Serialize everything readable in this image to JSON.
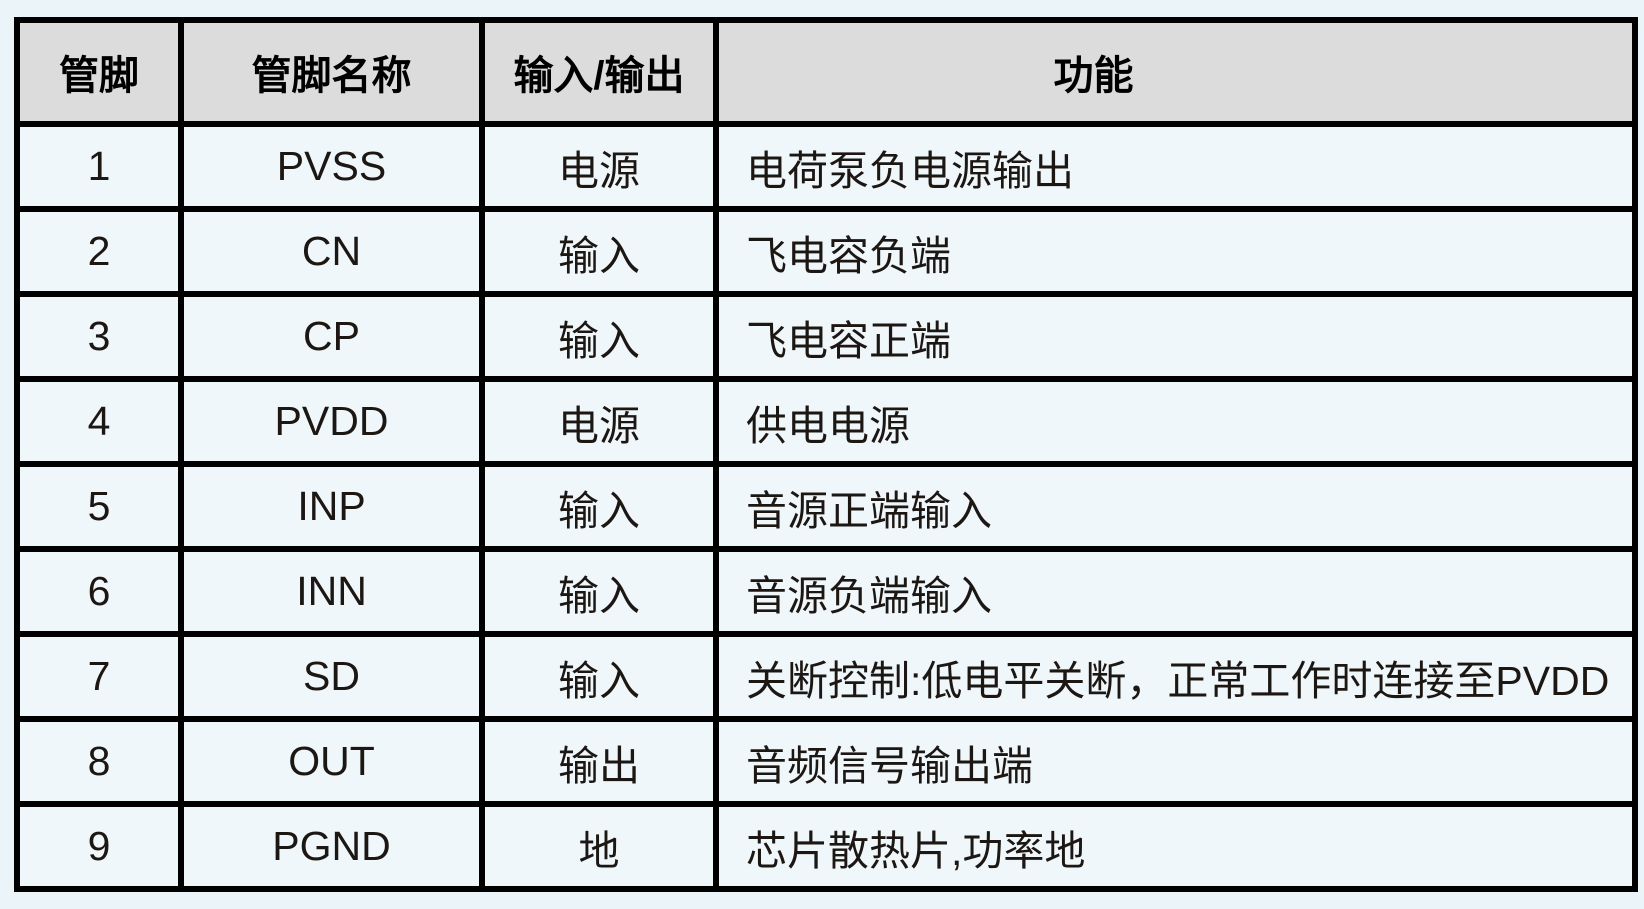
{
  "table": {
    "headers": [
      "管脚",
      "管脚名称",
      "输入/输出",
      "功能"
    ],
    "rows": [
      {
        "pin": "1",
        "name": "PVSS",
        "io": "电源",
        "function": "电荷泵负电源输出"
      },
      {
        "pin": "2",
        "name": "CN",
        "io": "输入",
        "function": "飞电容负端"
      },
      {
        "pin": "3",
        "name": "CP",
        "io": "输入",
        "function": "飞电容正端"
      },
      {
        "pin": "4",
        "name": "PVDD",
        "io": "电源",
        "function": "供电电源"
      },
      {
        "pin": "5",
        "name": "INP",
        "io": "输入",
        "function": "音源正端输入"
      },
      {
        "pin": "6",
        "name": "INN",
        "io": "输入",
        "function": "音源负端输入"
      },
      {
        "pin": "7",
        "name": "SD",
        "io": "输入",
        "function": "关断控制:低电平关断，正常工作时连接至PVDD"
      },
      {
        "pin": "8",
        "name": "OUT",
        "io": "输出",
        "function": "音频信号输出端"
      },
      {
        "pin": "9",
        "name": "PGND",
        "io": "地",
        "function": "芯片散热片,功率地"
      }
    ],
    "colors": {
      "page_background": "#ebf4f8",
      "cell_background": "#f0f7fa",
      "header_background": "#dcdcdd",
      "border_color": "#000000",
      "text_color": "#1d1714",
      "header_text_color": "#000000"
    }
  }
}
